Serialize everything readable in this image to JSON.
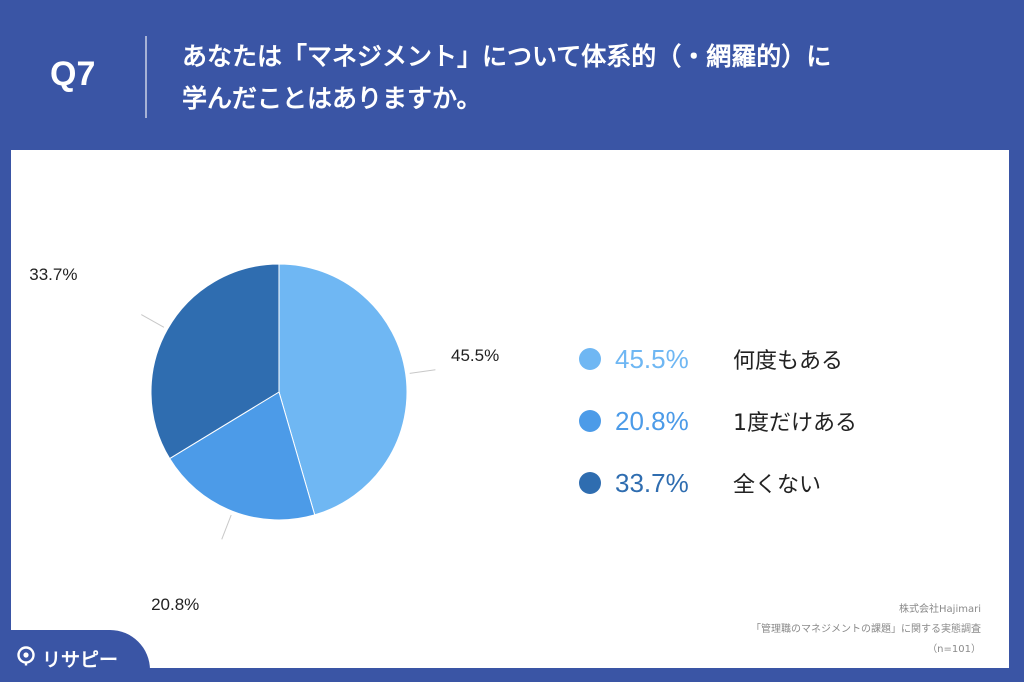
{
  "header": {
    "question_number": "Q7",
    "question_line1": "あなたは「マネジメント」について体系的（・網羅的）に",
    "question_line2": "学んだことはありますか。"
  },
  "chart_data": {
    "type": "pie",
    "slices": [
      {
        "label": "何度もある",
        "value": 45.5,
        "value_text": "45.5%",
        "color": "#6fb7f3",
        "legend_color": "#6fb7f3"
      },
      {
        "label": "1度だけある",
        "value": 20.8,
        "value_text": "20.8%",
        "color": "#4c9be8",
        "legend_color": "#4c9be8"
      },
      {
        "label": "全くない",
        "value": 33.7,
        "value_text": "33.7%",
        "color": "#2f6db0",
        "legend_color": "#2f6db0"
      }
    ],
    "start_angle": "12 o'clock",
    "direction": "clockwise",
    "legend_position": "right"
  },
  "source": {
    "line1": "株式会社Hajimari",
    "line2": "「管理職のマネジメントの課題」に関する実態調査",
    "line3": "（n=101）"
  },
  "logo": {
    "text": "リサピー",
    "icon": "lightbulb-pin-icon"
  },
  "colors": {
    "frame": "#3a55a5",
    "panel": "#ffffff",
    "label_line": "#c8c8c8"
  }
}
